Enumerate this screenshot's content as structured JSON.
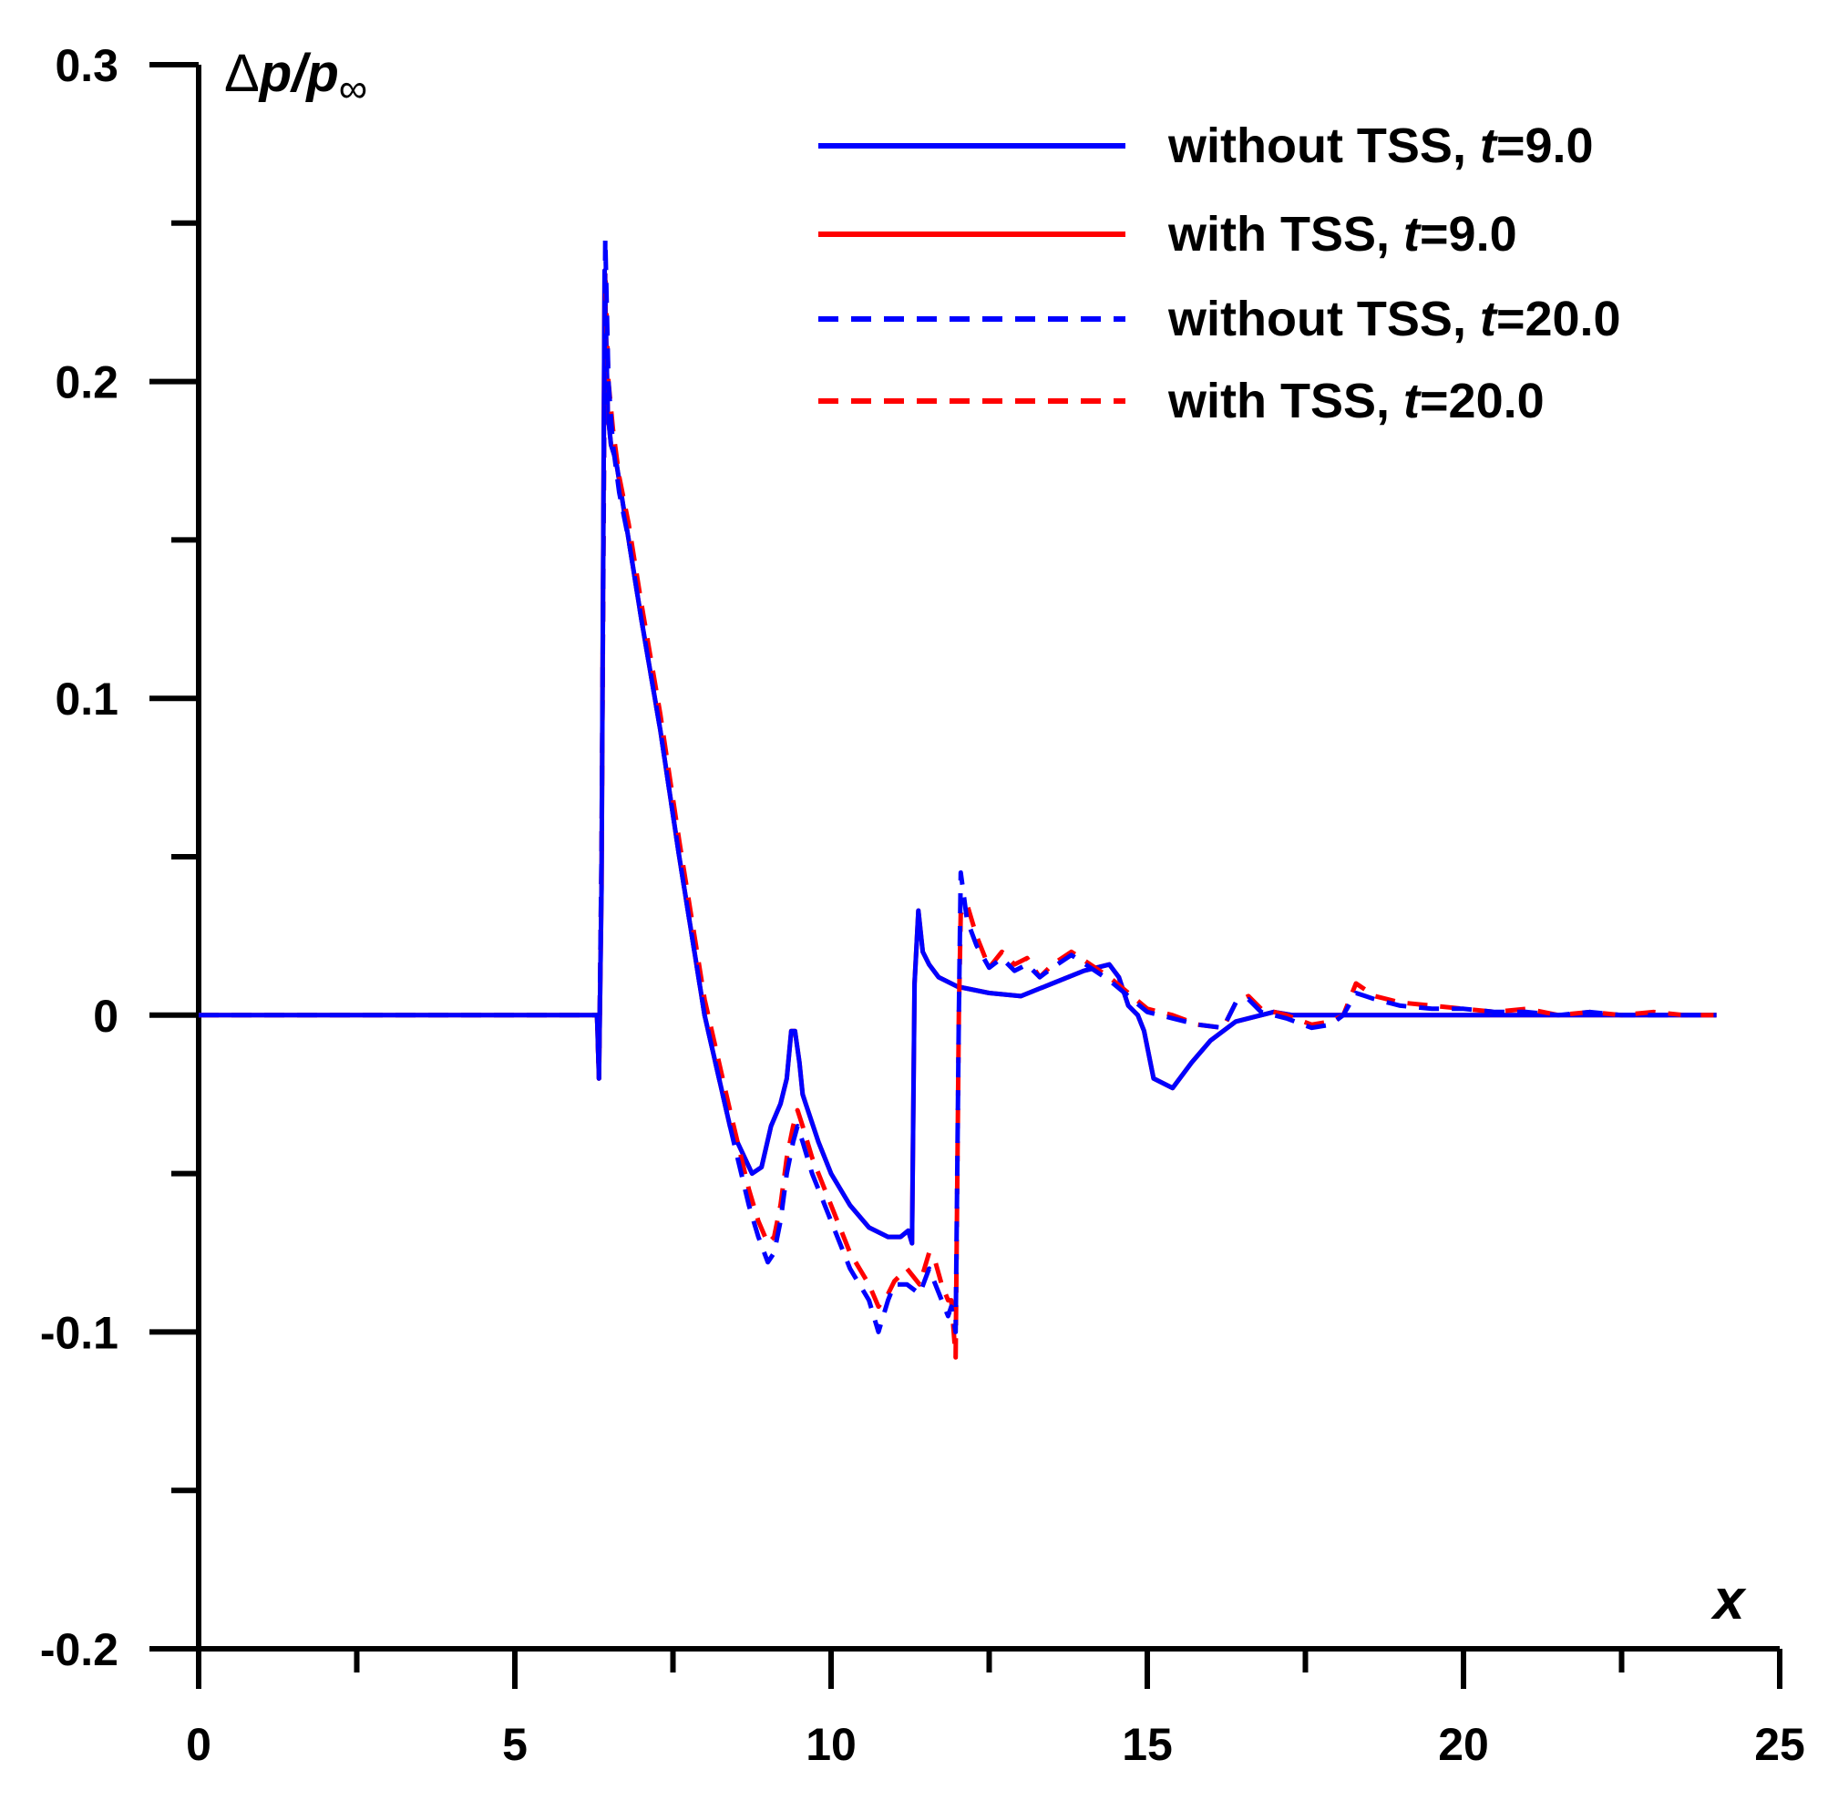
{
  "chart_data": {
    "type": "line",
    "xlabel": "x",
    "ylabel": {
      "delta": "Δ",
      "p": "p",
      "slash": "/",
      "p2": "p",
      "sub": "∞"
    },
    "xlim": [
      0,
      25
    ],
    "ylim": [
      -0.2,
      0.3
    ],
    "x_ticks": [
      0,
      5,
      10,
      15,
      20,
      25
    ],
    "x_tick_labels": [
      "0",
      "5",
      "10",
      "15",
      "20",
      "25"
    ],
    "y_ticks": [
      -0.2,
      -0.1,
      0,
      0.1,
      0.2,
      0.3
    ],
    "y_tick_labels": [
      "-0.2",
      "-0.1",
      "0",
      "0.1",
      "0.2",
      "0.3"
    ],
    "legend_placement": "top-right",
    "grid": false,
    "series": [
      {
        "name": "with TSS, t=9.0",
        "legend": {
          "pre": "with TSS, ",
          "t": "t",
          "post": "=9.0"
        },
        "color": "#ff0000",
        "dash": "solid",
        "x": [
          0,
          6.25,
          6.3,
          6.33,
          6.37,
          6.42,
          6.47,
          6.52,
          6.6,
          6.8,
          7.0,
          7.3,
          7.6,
          8.0,
          8.4,
          8.75,
          8.9,
          9.05,
          9.2,
          9.3,
          9.37,
          9.43,
          9.5,
          9.55,
          9.6,
          9.8,
          10.0,
          10.3,
          10.6,
          10.9,
          11.1,
          11.22,
          11.28,
          11.32,
          11.38,
          11.45,
          11.5,
          11.55,
          11.7,
          12.0,
          12.5,
          13.0,
          13.5,
          14.0,
          14.4,
          14.55,
          14.7,
          14.85,
          14.95,
          15.1,
          15.4,
          15.7,
          16.0,
          16.4,
          16.8,
          17.0,
          17.3,
          18,
          20,
          22,
          24
        ],
        "y": [
          0,
          0,
          0.0,
          -0.02,
          0.04,
          0.235,
          0.19,
          0.18,
          0.175,
          0.15,
          0.125,
          0.09,
          0.05,
          0.0,
          -0.035,
          -0.05,
          -0.048,
          -0.035,
          -0.028,
          -0.02,
          -0.005,
          -0.005,
          -0.015,
          -0.025,
          -0.028,
          -0.04,
          -0.05,
          -0.06,
          -0.067,
          -0.07,
          -0.07,
          -0.068,
          -0.072,
          0.01,
          0.033,
          0.02,
          0.018,
          0.016,
          0.012,
          0.009,
          0.007,
          0.006,
          0.01,
          0.014,
          0.016,
          0.012,
          0.003,
          0.0,
          -0.005,
          -0.02,
          -0.023,
          -0.015,
          -0.008,
          -0.002,
          0.0,
          0.001,
          0.0,
          0.0,
          0.0,
          0.0,
          0.0
        ]
      },
      {
        "name": "without TSS, t=9.0",
        "legend": {
          "pre": "without TSS, ",
          "t": "t",
          "post": "=9.0"
        },
        "color": "#0000ff",
        "dash": "solid",
        "x": [
          0,
          6.25,
          6.3,
          6.33,
          6.37,
          6.42,
          6.47,
          6.52,
          6.6,
          6.8,
          7.0,
          7.3,
          7.6,
          8.0,
          8.4,
          8.75,
          8.9,
          9.05,
          9.2,
          9.3,
          9.37,
          9.43,
          9.5,
          9.55,
          9.6,
          9.8,
          10.0,
          10.3,
          10.6,
          10.9,
          11.1,
          11.22,
          11.28,
          11.32,
          11.38,
          11.45,
          11.5,
          11.55,
          11.7,
          12.0,
          12.5,
          13.0,
          13.5,
          14.0,
          14.4,
          14.55,
          14.7,
          14.85,
          14.95,
          15.1,
          15.4,
          15.7,
          16.0,
          16.4,
          16.8,
          17.0,
          17.3,
          18,
          20,
          22,
          24
        ],
        "y": [
          0,
          0,
          0.0,
          -0.02,
          0.04,
          0.235,
          0.19,
          0.18,
          0.175,
          0.15,
          0.125,
          0.09,
          0.05,
          0.0,
          -0.035,
          -0.05,
          -0.048,
          -0.035,
          -0.028,
          -0.02,
          -0.005,
          -0.005,
          -0.015,
          -0.025,
          -0.028,
          -0.04,
          -0.05,
          -0.06,
          -0.067,
          -0.07,
          -0.07,
          -0.068,
          -0.072,
          0.01,
          0.033,
          0.02,
          0.018,
          0.016,
          0.012,
          0.009,
          0.007,
          0.006,
          0.01,
          0.014,
          0.016,
          0.012,
          0.003,
          0.0,
          -0.005,
          -0.02,
          -0.023,
          -0.015,
          -0.008,
          -0.002,
          0.0,
          0.001,
          0.0,
          0.0,
          0.0,
          0.0,
          0.0
        ]
      },
      {
        "name": "with TSS, t=20.0",
        "legend": {
          "pre": "with TSS, ",
          "t": "t",
          "post": "=20.0"
        },
        "color": "#ff0000",
        "dash": "dashed",
        "x": [
          0,
          6.25,
          6.3,
          6.33,
          6.37,
          6.43,
          6.48,
          6.55,
          6.65,
          6.8,
          7.0,
          7.3,
          7.6,
          8.0,
          8.4,
          8.7,
          8.85,
          9.0,
          9.1,
          9.2,
          9.3,
          9.4,
          9.47,
          9.55,
          9.7,
          9.9,
          10.1,
          10.3,
          10.6,
          10.75,
          10.9,
          11.0,
          11.2,
          11.4,
          11.55,
          11.65,
          11.75,
          11.85,
          11.9,
          11.97,
          12.02,
          12.05,
          12.15,
          12.3,
          12.5,
          12.7,
          12.9,
          13.1,
          13.3,
          13.5,
          13.8,
          14.1,
          14.4,
          14.7,
          15.0,
          15.4,
          15.8,
          16.2,
          16.4,
          16.6,
          16.8,
          17.2,
          17.6,
          17.9,
          18.1,
          18.3,
          18.45,
          18.6,
          19.0,
          19.5,
          20,
          20.5,
          21,
          21.5,
          22,
          22.5,
          23,
          23.5,
          24
        ],
        "y": [
          0,
          0,
          0.0,
          -0.02,
          0.05,
          0.235,
          0.2,
          0.185,
          0.17,
          0.155,
          0.13,
          0.095,
          0.055,
          0.005,
          -0.03,
          -0.055,
          -0.065,
          -0.072,
          -0.07,
          -0.06,
          -0.045,
          -0.035,
          -0.03,
          -0.035,
          -0.045,
          -0.055,
          -0.065,
          -0.075,
          -0.085,
          -0.092,
          -0.088,
          -0.084,
          -0.08,
          -0.085,
          -0.075,
          -0.078,
          -0.085,
          -0.09,
          -0.09,
          -0.108,
          0.0,
          0.032,
          0.035,
          0.025,
          0.015,
          0.02,
          0.016,
          0.018,
          0.012,
          0.016,
          0.02,
          0.016,
          0.012,
          0.007,
          0.002,
          0.0,
          -0.003,
          -0.004,
          0.004,
          0.006,
          0.002,
          0.0,
          -0.003,
          -0.002,
          0.0,
          0.01,
          0.008,
          0.006,
          0.004,
          0.003,
          0.002,
          0.001,
          0.002,
          0.0,
          0.001,
          0.0,
          0.001,
          0.0,
          0.0
        ]
      },
      {
        "name": "without TSS, t=20.0",
        "legend": {
          "pre": "without TSS, ",
          "t": "t",
          "post": "=20.0"
        },
        "color": "#0000ff",
        "dash": "dashed",
        "x": [
          0,
          6.25,
          6.3,
          6.33,
          6.37,
          6.43,
          6.48,
          6.55,
          6.65,
          6.8,
          7.0,
          7.3,
          7.6,
          8.0,
          8.4,
          8.7,
          8.85,
          9.0,
          9.1,
          9.2,
          9.3,
          9.4,
          9.47,
          9.55,
          9.7,
          9.9,
          10.1,
          10.3,
          10.6,
          10.75,
          10.9,
          11.0,
          11.2,
          11.4,
          11.55,
          11.65,
          11.75,
          11.85,
          11.9,
          11.97,
          12.02,
          12.05,
          12.15,
          12.3,
          12.5,
          12.7,
          12.9,
          13.1,
          13.3,
          13.5,
          13.8,
          14.1,
          14.4,
          14.7,
          15.0,
          15.4,
          15.8,
          16.2,
          16.4,
          16.6,
          16.8,
          17.2,
          17.6,
          17.9,
          18.1,
          18.3,
          18.45,
          18.6,
          19.0,
          19.5,
          20,
          20.5,
          21,
          21.5,
          22,
          22.5,
          23,
          23.5,
          24
        ],
        "y": [
          0,
          0,
          0.0,
          -0.02,
          0.05,
          0.245,
          0.2,
          0.18,
          0.165,
          0.15,
          0.125,
          0.09,
          0.05,
          0.0,
          -0.035,
          -0.06,
          -0.07,
          -0.078,
          -0.075,
          -0.065,
          -0.05,
          -0.04,
          -0.035,
          -0.04,
          -0.05,
          -0.06,
          -0.07,
          -0.08,
          -0.09,
          -0.1,
          -0.09,
          -0.085,
          -0.085,
          -0.088,
          -0.08,
          -0.085,
          -0.09,
          -0.095,
          -0.092,
          -0.1,
          0.0,
          0.045,
          0.03,
          0.022,
          0.015,
          0.018,
          0.014,
          0.016,
          0.012,
          0.015,
          0.019,
          0.015,
          0.011,
          0.006,
          0.001,
          -0.001,
          -0.003,
          -0.004,
          0.004,
          0.005,
          0.001,
          -0.001,
          -0.004,
          -0.003,
          0.0,
          0.007,
          0.006,
          0.005,
          0.003,
          0.002,
          0.002,
          0.001,
          0.001,
          0.0,
          0.001,
          0.0,
          0.0,
          0.0,
          0.0
        ]
      }
    ]
  }
}
